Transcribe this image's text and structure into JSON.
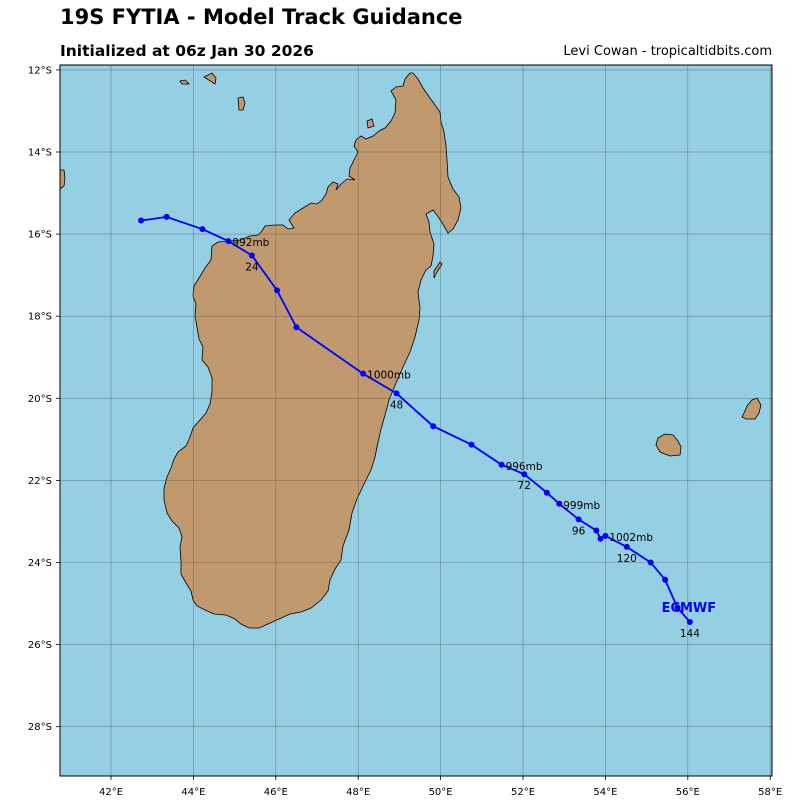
{
  "header": {
    "title": "19S FYTIA - Model Track Guidance",
    "subtitle": "Initialized at 06z Jan 30 2026",
    "credit": "Levi Cowan - tropicaltidbits.com"
  },
  "colors": {
    "ocean": "#94cfe4",
    "land": "#c0996e",
    "track": "#0000ff",
    "grid": "#555555"
  },
  "axes": {
    "lon_ticks": [
      "42°E",
      "44°E",
      "46°E",
      "48°E",
      "50°E",
      "52°E",
      "54°E",
      "56°E",
      "58°E"
    ],
    "lat_ticks": [
      "12°S",
      "14°S",
      "16°S",
      "18°S",
      "20°S",
      "22°S",
      "24°S",
      "26°S",
      "28°S"
    ]
  },
  "track": {
    "model": "ECMWF",
    "points": [
      {
        "lon": 42.73,
        "lat": -15.67
      },
      {
        "lon": 43.35,
        "lat": -15.58
      },
      {
        "lon": 44.22,
        "lat": -15.88
      },
      {
        "lon": 44.85,
        "lat": -16.17
      },
      {
        "lon": 45.42,
        "lat": -16.52
      },
      {
        "lon": 46.03,
        "lat": -17.37
      },
      {
        "lon": 46.5,
        "lat": -18.27
      },
      {
        "lon": 48.12,
        "lat": -19.4
      },
      {
        "lon": 48.93,
        "lat": -19.88
      },
      {
        "lon": 49.82,
        "lat": -20.68
      },
      {
        "lon": 50.75,
        "lat": -21.13
      },
      {
        "lon": 51.48,
        "lat": -21.62
      },
      {
        "lon": 52.03,
        "lat": -21.85
      },
      {
        "lon": 52.58,
        "lat": -22.3
      },
      {
        "lon": 52.88,
        "lat": -22.57
      },
      {
        "lon": 53.35,
        "lat": -22.95
      },
      {
        "lon": 53.78,
        "lat": -23.22
      },
      {
        "lon": 53.88,
        "lat": -23.42
      },
      {
        "lon": 54.0,
        "lat": -23.35
      },
      {
        "lon": 54.52,
        "lat": -23.62
      },
      {
        "lon": 55.1,
        "lat": -24.0
      },
      {
        "lon": 55.45,
        "lat": -24.42
      },
      {
        "lon": 55.75,
        "lat": -25.1
      },
      {
        "lon": 56.05,
        "lat": -25.45
      }
    ],
    "pressure_labels": [
      {
        "text": "992mb",
        "lon": 44.85,
        "lat": -16.17
      },
      {
        "text": "1000mb",
        "lon": 48.12,
        "lat": -19.4
      },
      {
        "text": "996mb",
        "lon": 51.48,
        "lat": -21.62
      },
      {
        "text": "999mb",
        "lon": 52.88,
        "lat": -22.57
      },
      {
        "text": "1002mb",
        "lon": 54.0,
        "lat": -23.35
      }
    ],
    "hour_labels": [
      {
        "text": "24",
        "lon": 45.42,
        "lat": -16.52
      },
      {
        "text": "48",
        "lon": 48.93,
        "lat": -19.88
      },
      {
        "text": "72",
        "lon": 52.03,
        "lat": -21.85
      },
      {
        "text": "96",
        "lon": 53.35,
        "lat": -22.95
      },
      {
        "text": "120",
        "lon": 54.52,
        "lat": -23.62
      },
      {
        "text": "144",
        "lon": 56.05,
        "lat": -25.45
      }
    ]
  }
}
